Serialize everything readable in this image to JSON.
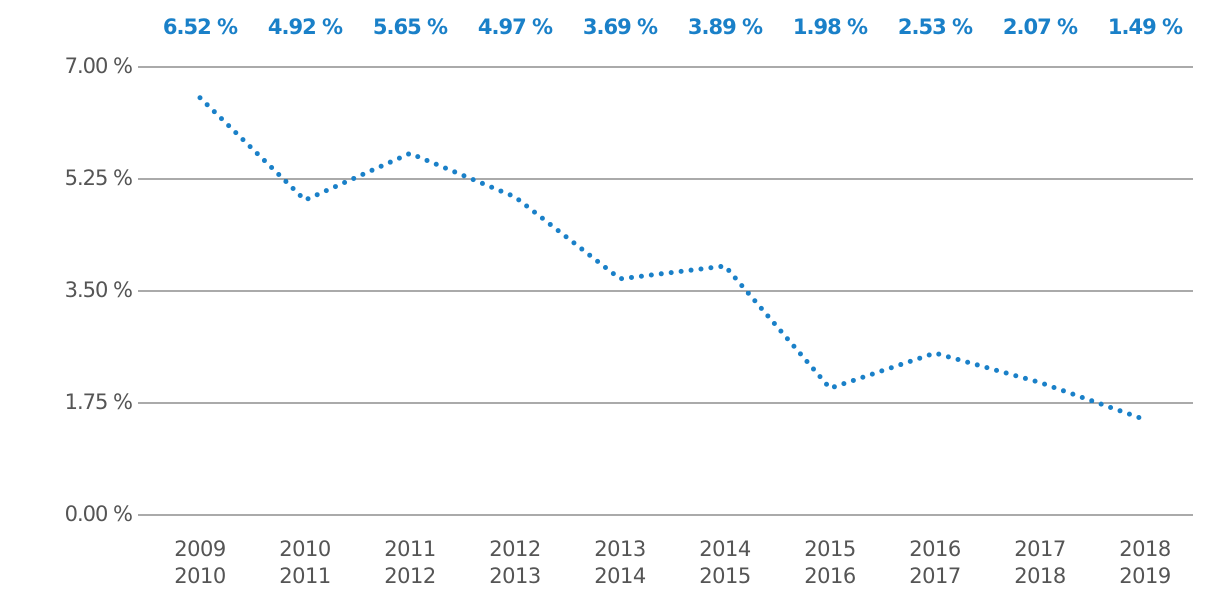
{
  "chart_data": {
    "type": "line",
    "categories": [
      [
        "2009",
        "2010"
      ],
      [
        "2010",
        "2011"
      ],
      [
        "2011",
        "2012"
      ],
      [
        "2012",
        "2013"
      ],
      [
        "2013",
        "2014"
      ],
      [
        "2014",
        "2015"
      ],
      [
        "2015",
        "2016"
      ],
      [
        "2016",
        "2017"
      ],
      [
        "2017",
        "2018"
      ],
      [
        "2018",
        "2019"
      ]
    ],
    "values": [
      6.52,
      4.92,
      5.65,
      4.97,
      3.69,
      3.89,
      1.98,
      2.53,
      2.07,
      1.49
    ],
    "value_labels": [
      "6.52 %",
      "4.92 %",
      "5.65 %",
      "4.97 %",
      "3.69 %",
      "3.89 %",
      "1.98 %",
      "2.53 %",
      "2.07 %",
      "1.49 %"
    ],
    "color": "#1a80c8",
    "ylim": [
      0,
      7
    ],
    "yticks": [
      {
        "value": 0,
        "label": "0.00 %"
      },
      {
        "value": 1.75,
        "label": "1.75 %"
      },
      {
        "value": 3.5,
        "label": "3.50 %"
      },
      {
        "value": 5.25,
        "label": "5.25 %"
      },
      {
        "value": 7,
        "label": "7.00 %"
      }
    ],
    "grid": true
  }
}
